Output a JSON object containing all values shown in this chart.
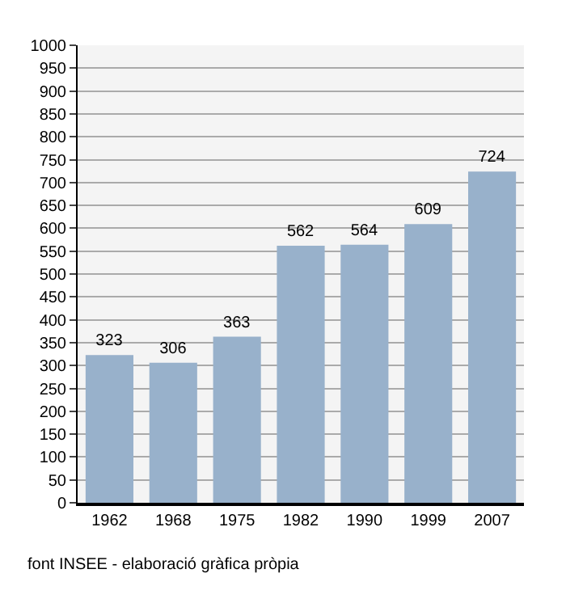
{
  "chart_data": {
    "type": "bar",
    "categories": [
      "1962",
      "1968",
      "1975",
      "1982",
      "1990",
      "1999",
      "2007"
    ],
    "values": [
      323,
      306,
      363,
      562,
      564,
      609,
      724
    ],
    "color": "#98b1cb",
    "data_labels": true,
    "ylim": [
      0,
      1000
    ],
    "yticks": [
      0,
      50,
      100,
      150,
      200,
      250,
      300,
      350,
      400,
      450,
      500,
      550,
      600,
      650,
      700,
      750,
      800,
      850,
      900,
      950,
      1000
    ],
    "grid": "y",
    "legend": false,
    "annotations": [
      "font INSEE - elaboració gràfica pròpia"
    ]
  }
}
